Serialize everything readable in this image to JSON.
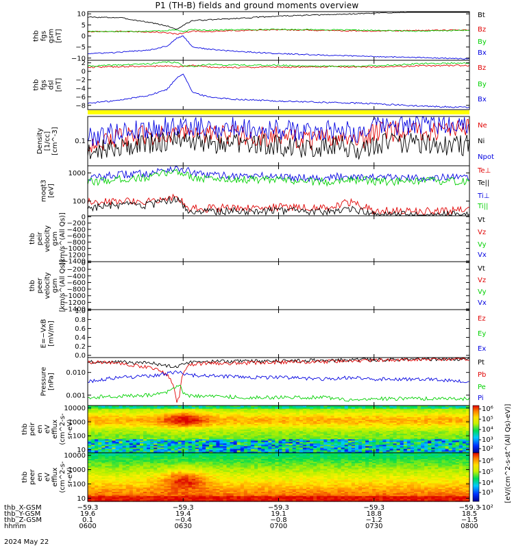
{
  "title": "P1 (TH-B) fields and ground moments overview",
  "date": "2024 May 22",
  "colors": {
    "black": "#000000",
    "red": "#e00000",
    "green": "#00d000",
    "blue": "#0000e0",
    "yellow": "#ffff00",
    "frame": "#000000"
  },
  "chart_data": [
    {
      "type": "line",
      "id": "fgs",
      "ylabel_lines": [
        "thb",
        "fgs",
        "gsm",
        "[nT]"
      ],
      "yticks": [
        "10",
        "5",
        "0",
        "−5",
        "−10"
      ],
      "ytick_values": [
        10,
        5,
        0,
        -5,
        -10
      ],
      "ylim": [
        -11,
        11
      ],
      "log": false,
      "x": [
        0,
        10,
        20,
        25,
        28,
        30,
        33,
        38,
        45,
        60,
        75,
        90,
        105,
        120
      ],
      "series": [
        {
          "name": "Bt",
          "color": "black",
          "values": [
            8.5,
            8.3,
            6.0,
            4.5,
            3.0,
            4.8,
            7.0,
            7.3,
            7.8,
            9.0,
            9.6,
            10.3,
            11.0,
            11.8
          ]
        },
        {
          "name": "Bz",
          "color": "red",
          "values": [
            2.0,
            2.1,
            1.8,
            1.5,
            0.8,
            1.2,
            2.2,
            2.0,
            2.4,
            2.8,
            2.5,
            2.2,
            2.5,
            2.7
          ]
        },
        {
          "name": "By",
          "color": "green",
          "values": [
            2.1,
            2.0,
            2.2,
            2.5,
            2.8,
            1.8,
            3.0,
            2.6,
            2.8,
            3.0,
            2.8,
            2.5,
            2.2,
            2.6
          ]
        },
        {
          "name": "Bx",
          "color": "blue",
          "values": [
            -8.0,
            -7.4,
            -6.2,
            -4.5,
            -1.0,
            0.0,
            -5.0,
            -6.0,
            -6.8,
            -8.0,
            -8.7,
            -9.3,
            -9.8,
            -10.4
          ]
        }
      ]
    },
    {
      "type": "line",
      "id": "fgs_dsl",
      "ylabel_lines": [
        "thb",
        "fgs",
        "dsl",
        "[nT]"
      ],
      "yticks": [
        "2",
        "0",
        "−2",
        "−4",
        "−6",
        "−8"
      ],
      "ytick_values": [
        2,
        0,
        -2,
        -4,
        -6,
        -8
      ],
      "ylim": [
        -9,
        2.6
      ],
      "log": false,
      "x": [
        0,
        10,
        20,
        25,
        28,
        30,
        33,
        38,
        45,
        60,
        75,
        90,
        105,
        120
      ],
      "series": [
        {
          "name": "Bz",
          "color": "red",
          "values": [
            1.0,
            1.1,
            1.2,
            1.3,
            1.0,
            1.2,
            1.4,
            1.0,
            0.9,
            1.0,
            1.1,
            1.0,
            1.3,
            1.4
          ]
        },
        {
          "name": "By",
          "color": "green",
          "values": [
            1.2,
            1.5,
            1.8,
            2.2,
            2.0,
            1.4,
            1.2,
            1.6,
            1.5,
            1.4,
            1.2,
            1.3,
            1.8,
            2.0
          ]
        },
        {
          "name": "Bx",
          "color": "blue",
          "values": [
            -7.5,
            -6.8,
            -5.5,
            -4.2,
            -1.5,
            -0.5,
            -5.0,
            -6.0,
            -6.5,
            -7.0,
            -7.3,
            -7.6,
            -8.2,
            -8.5
          ]
        }
      ]
    },
    {
      "type": "line",
      "id": "density",
      "ylabel_lines": [
        "Density",
        "[1/cc]",
        "[cm^-3]"
      ],
      "yticks": [
        "0.1"
      ],
      "ytick_values": [
        0.1
      ],
      "ylim": [
        0.03,
        0.32
      ],
      "log": true,
      "x": [
        0,
        10,
        20,
        25,
        28,
        30,
        33,
        38,
        45,
        60,
        70,
        75,
        80,
        85,
        90,
        100,
        110,
        120
      ],
      "series": [
        {
          "name": "Ne",
          "color": "red",
          "values": [
            0.085,
            0.11,
            0.13,
            0.14,
            0.15,
            0.15,
            0.14,
            0.13,
            0.13,
            0.12,
            0.1,
            0.11,
            0.12,
            0.09,
            0.15,
            0.16,
            0.16,
            0.17
          ]
        },
        {
          "name": "Ni",
          "color": "black",
          "values": [
            0.06,
            0.075,
            0.09,
            0.095,
            0.1,
            0.1,
            0.095,
            0.09,
            0.085,
            0.08,
            0.07,
            0.075,
            0.08,
            0.055,
            0.085,
            0.09,
            0.08,
            0.08
          ]
        },
        {
          "name": "Npot",
          "color": "blue",
          "values": [
            0.12,
            0.15,
            0.18,
            0.19,
            0.2,
            0.2,
            0.19,
            0.18,
            0.19,
            0.17,
            0.15,
            0.17,
            0.18,
            0.14,
            0.2,
            0.21,
            0.22,
            0.23
          ]
        }
      ]
    },
    {
      "type": "line",
      "id": "temperature",
      "ylabel_lines": [
        "moqt3",
        "[eV]"
      ],
      "yticks": [
        "1000",
        "100"
      ],
      "ytick_values": [
        1000,
        100
      ],
      "ylim": [
        30,
        1800
      ],
      "log": true,
      "x": [
        0,
        10,
        20,
        26,
        28,
        31,
        34,
        38,
        45,
        60,
        75,
        82,
        90,
        100,
        110,
        120
      ],
      "series": [
        {
          "name": "Te⊥",
          "color": "red",
          "values": [
            90,
            100,
            100,
            140,
            140,
            60,
            55,
            55,
            60,
            60,
            55,
            90,
            45,
            45,
            45,
            45
          ]
        },
        {
          "name": "Te||",
          "color": "black",
          "values": [
            60,
            70,
            70,
            110,
            110,
            45,
            42,
            42,
            45,
            45,
            42,
            55,
            32,
            32,
            32,
            33
          ]
        },
        {
          "name": "Ti⊥",
          "color": "blue",
          "values": [
            650,
            850,
            1000,
            1450,
            1500,
            1200,
            900,
            850,
            800,
            750,
            650,
            800,
            700,
            650,
            700,
            650
          ]
        },
        {
          "name": "Ti||",
          "color": "green",
          "values": [
            450,
            600,
            700,
            1100,
            1150,
            900,
            650,
            620,
            600,
            550,
            480,
            600,
            500,
            480,
            520,
            480
          ]
        }
      ]
    },
    {
      "type": "line",
      "id": "peir_velocity",
      "ylabel_lines": [
        "thb",
        "peir",
        "velocity",
        "gsm",
        "[km/s^(All Qs)]"
      ],
      "yticks": [
        "0",
        "−200",
        "−400",
        "−600",
        "−800",
        "−1000",
        "−1200",
        "−1400"
      ],
      "ytick_values": [
        0,
        -200,
        -400,
        -600,
        -800,
        -1000,
        -1200,
        -1400
      ],
      "ylim": [
        -1420,
        30
      ],
      "log": false,
      "x": [],
      "series": [
        {
          "name": "Vt",
          "color": "black",
          "values": []
        },
        {
          "name": "Vz",
          "color": "red",
          "values": []
        },
        {
          "name": "Vy",
          "color": "green",
          "values": []
        },
        {
          "name": "Vx",
          "color": "blue",
          "values": []
        }
      ]
    },
    {
      "type": "line",
      "id": "peer_velocity",
      "ylabel_lines": [
        "thb",
        "peer",
        "velocity",
        "gsm",
        "[km/s^(All Qs)]"
      ],
      "yticks": [
        "0",
        "−200",
        "−400",
        "−600",
        "−800",
        "−1000",
        "−1200",
        "−1400"
      ],
      "ytick_values": [
        0,
        -200,
        -400,
        -600,
        -800,
        -1000,
        -1200,
        -1400
      ],
      "ylim": [
        -1420,
        30
      ],
      "log": false,
      "x": [],
      "series": [
        {
          "name": "Vt",
          "color": "black",
          "values": []
        },
        {
          "name": "Vz",
          "color": "red",
          "values": []
        },
        {
          "name": "Vy",
          "color": "green",
          "values": []
        },
        {
          "name": "Vx",
          "color": "blue",
          "values": []
        }
      ]
    },
    {
      "type": "line",
      "id": "efield",
      "ylabel_lines": [
        "E=−VxB",
        "[mV/m]"
      ],
      "yticks": [
        "1.0",
        "0.8",
        "0.6",
        "0.4",
        "0.2",
        "0.0"
      ],
      "ytick_values": [
        1.0,
        0.8,
        0.6,
        0.4,
        0.2,
        0.0
      ],
      "ylim": [
        -0.05,
        1.02
      ],
      "log": false,
      "x": [],
      "series": [
        {
          "name": "Ez",
          "color": "red",
          "values": []
        },
        {
          "name": "Ey",
          "color": "green",
          "values": []
        },
        {
          "name": "Ex",
          "color": "blue",
          "values": []
        }
      ]
    },
    {
      "type": "line",
      "id": "pressure",
      "ylabel_lines": [
        "Pressure",
        "[nPa]"
      ],
      "yticks": [
        "0.010",
        "0.001"
      ],
      "ytick_values": [
        0.01,
        0.001
      ],
      "ylim": [
        0.00035,
        0.045
      ],
      "log": true,
      "x": [
        0,
        10,
        20,
        25,
        27,
        28,
        29,
        30,
        32,
        35,
        40,
        50,
        60,
        75,
        82,
        90,
        105,
        120
      ],
      "series": [
        {
          "name": "Pt",
          "color": "black",
          "values": [
            0.03,
            0.029,
            0.025,
            0.02,
            0.018,
            0.018,
            0.02,
            0.024,
            0.028,
            0.029,
            0.03,
            0.031,
            0.032,
            0.034,
            0.035,
            0.036,
            0.038,
            0.04
          ]
        },
        {
          "name": "Pb",
          "color": "red",
          "values": [
            0.028,
            0.026,
            0.015,
            0.008,
            0.002,
            0.0004,
            0.001,
            0.009,
            0.02,
            0.024,
            0.025,
            0.026,
            0.028,
            0.03,
            0.032,
            0.034,
            0.037,
            0.04
          ]
        },
        {
          "name": "Pe",
          "color": "green",
          "values": [
            0.0008,
            0.0009,
            0.001,
            0.0014,
            0.0022,
            0.0025,
            0.0025,
            0.0012,
            0.0009,
            0.0009,
            0.0009,
            0.0008,
            0.0008,
            0.0008,
            0.0006,
            0.0007,
            0.0007,
            0.0007
          ]
        },
        {
          "name": "Pi",
          "color": "blue",
          "values": [
            0.004,
            0.006,
            0.007,
            0.009,
            0.01,
            0.011,
            0.011,
            0.009,
            0.008,
            0.007,
            0.007,
            0.006,
            0.006,
            0.005,
            0.006,
            0.005,
            0.005,
            0.004
          ]
        }
      ]
    },
    {
      "type": "heatmap",
      "id": "peir_eflux",
      "ylabel_lines": [
        "thb",
        "peir",
        "en",
        "eV",
        "efflux",
        "(cm^2-s-",
        "sr-eV)"
      ],
      "yticks": [
        "10000",
        "1000",
        "100",
        "10"
      ],
      "ytick_values": [
        10000,
        1000,
        100,
        10
      ],
      "ylim": [
        6,
        15000
      ],
      "log": true
    },
    {
      "type": "heatmap",
      "id": "peer_eflux",
      "ylabel_lines": [
        "thb",
        "peer",
        "en",
        "eV",
        "efflux",
        "(cm^2-s-",
        "sr-eV)"
      ],
      "yticks": [
        "10000",
        "1000",
        "100",
        "10"
      ],
      "ytick_values": [
        10000,
        1000,
        100,
        10
      ],
      "ylim": [
        6,
        15000
      ],
      "log": true
    }
  ],
  "colorbar": {
    "ticks": [
      "10⁶",
      "10⁵",
      "10⁴",
      "10³",
      "10²",
      "10⁶",
      "10⁵",
      "10⁴",
      "10³",
      "10²"
    ],
    "label": "[eV/(cm^2-s-st^(All Qs)-eV)]"
  },
  "x_axis": {
    "row_labels": [
      "thb_X-GSM",
      "thb_Y-GSM",
      "thb_Z-GSM",
      "hhmm"
    ],
    "columns": [
      [
        "−59.3",
        "19.6",
        "0.1",
        "0600"
      ],
      [
        "−59.3",
        "19.4",
        "−0.4",
        "0630"
      ],
      [
        "−59.3",
        "19.1",
        "−0.8",
        "0700"
      ],
      [
        "−59.3",
        "18.8",
        "−1.2",
        "0730"
      ],
      [
        "−59.3",
        "18.5",
        "−1.5",
        "0800"
      ]
    ],
    "time_range_minutes": [
      0,
      120
    ]
  }
}
